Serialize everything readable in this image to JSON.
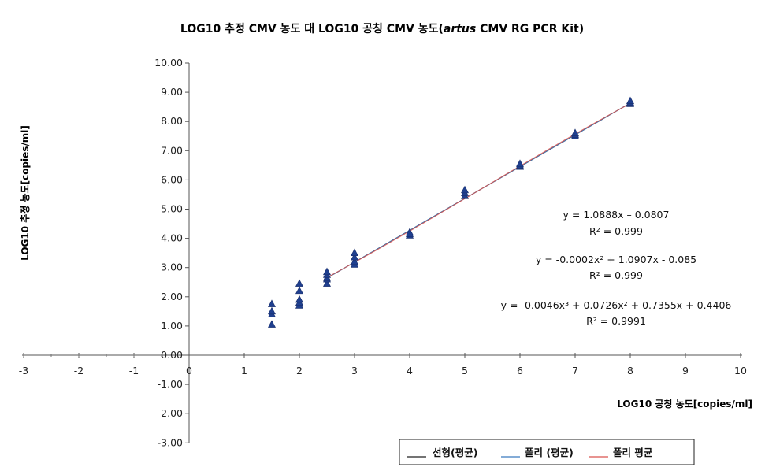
{
  "chart_data": {
    "type": "scatter",
    "title_parts": [
      "LOG10 추정 CMV 농도 대 LOG10 공칭 CMV 농도(",
      "artus",
      " CMV RG PCR Kit)"
    ],
    "xlabel": "LOG10 공칭 농도[copies/ml]",
    "ylabel": "LOG10 추정 농도[copies/ml]",
    "xlim": [
      -3,
      10
    ],
    "ylim": [
      -3,
      10
    ],
    "x_ticks": [
      "-3",
      "-2",
      "-1",
      "0",
      "1",
      "2",
      "3",
      "4",
      "5",
      "6",
      "7",
      "8",
      "9",
      "10"
    ],
    "y_ticks": [
      "-3.00",
      "-2.00",
      "-1.00",
      "0.00",
      "1.00",
      "2.00",
      "3.00",
      "4.00",
      "5.00",
      "6.00",
      "7.00",
      "8.00",
      "9.00",
      "10.00"
    ],
    "grid": false,
    "series": [
      {
        "marker": "triangle",
        "color": "#1f3f8f",
        "points": [
          [
            1.5,
            1.05
          ],
          [
            1.5,
            1.4
          ],
          [
            1.5,
            1.5
          ],
          [
            1.5,
            1.75
          ],
          [
            2.0,
            1.7
          ],
          [
            2.0,
            1.8
          ],
          [
            2.0,
            1.9
          ],
          [
            2.0,
            2.2
          ],
          [
            2.0,
            2.45
          ],
          [
            2.5,
            2.45
          ],
          [
            2.5,
            2.6
          ],
          [
            2.5,
            2.65
          ],
          [
            2.5,
            2.75
          ],
          [
            2.5,
            2.85
          ],
          [
            3.0,
            3.1
          ],
          [
            3.0,
            3.2
          ],
          [
            3.0,
            3.35
          ],
          [
            3.0,
            3.5
          ],
          [
            4.0,
            4.1
          ],
          [
            4.0,
            4.15
          ],
          [
            4.0,
            4.2
          ],
          [
            5.0,
            5.45
          ],
          [
            5.0,
            5.55
          ],
          [
            5.0,
            5.65
          ],
          [
            6.0,
            6.45
          ],
          [
            6.0,
            6.5
          ],
          [
            6.0,
            6.55
          ],
          [
            7.0,
            7.5
          ],
          [
            7.0,
            7.55
          ],
          [
            7.0,
            7.6
          ],
          [
            8.0,
            8.6
          ],
          [
            8.0,
            8.65
          ],
          [
            8.0,
            8.7
          ]
        ]
      }
    ],
    "trendlines": [
      {
        "name": "선형(평균)",
        "color": "#222222",
        "equation": "y = 1.0888x – 0.0807",
        "r2": "R² = 0.999",
        "coef": [
          -0.0807,
          1.0888
        ]
      },
      {
        "name": "폴리 (평균)",
        "color": "#3b7bbf",
        "equation": "y = -0.0002x² + 1.0907x - 0.085",
        "r2": "R² = 0.999",
        "coef": [
          -0.085,
          1.0907,
          -0.0002
        ]
      },
      {
        "name": "폴리 평균",
        "color": "#d9534f",
        "equation": "y = -0.0046x³ + 0.0726x² + 0.7355x + 0.4406",
        "r2": "R² = 0.9991",
        "coef": [
          0.4406,
          0.7355,
          0.0726,
          -0.0046
        ]
      }
    ],
    "trend_x_range": [
      2.5,
      8.0
    ],
    "legend_position": "bottom-right"
  }
}
